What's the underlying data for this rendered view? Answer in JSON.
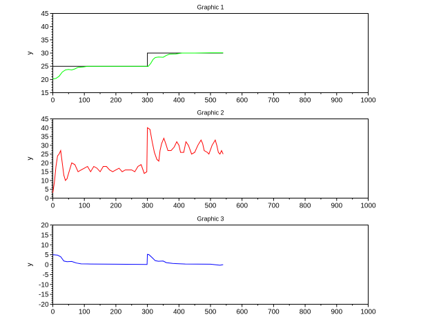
{
  "chart_data": [
    {
      "type": "line",
      "title": "Graphic 1",
      "xlabel": "",
      "ylabel": "y",
      "xlim": [
        0,
        1000
      ],
      "ylim": [
        15,
        45
      ],
      "xticks": [
        0,
        100,
        200,
        300,
        400,
        500,
        600,
        700,
        800,
        900,
        1000
      ],
      "yticks": [
        15,
        20,
        25,
        30,
        35,
        40,
        45
      ],
      "grid": false,
      "series": [
        {
          "color": "#000000",
          "x": [
            0,
            300,
            300,
            540
          ],
          "y": [
            25,
            25,
            30,
            30
          ]
        },
        {
          "color": "#00ff00",
          "x": [
            0,
            10,
            20,
            30,
            40,
            50,
            60,
            70,
            80,
            95,
            110,
            150,
            200,
            250,
            299,
            302,
            310,
            318,
            325,
            335,
            350,
            360,
            370,
            390,
            410,
            450,
            500,
            540
          ],
          "y": [
            20.2,
            20.4,
            21.2,
            22.8,
            23.6,
            23.8,
            23.6,
            24.0,
            24.6,
            24.7,
            25.0,
            25.0,
            25.0,
            25.0,
            25.0,
            24.9,
            26.0,
            27.6,
            28.3,
            28.5,
            28.4,
            29.1,
            29.6,
            29.7,
            30.0,
            30.0,
            30.1,
            30.1
          ]
        }
      ]
    },
    {
      "type": "line",
      "title": "Graphic 2",
      "xlabel": "",
      "ylabel": "y",
      "xlim": [
        0,
        1000
      ],
      "ylim": [
        0,
        45
      ],
      "xticks": [
        0,
        100,
        200,
        300,
        400,
        500,
        600,
        700,
        800,
        900,
        1000
      ],
      "yticks": [
        0,
        5,
        10,
        15,
        20,
        25,
        30,
        35,
        40,
        45
      ],
      "grid": false,
      "series": [
        {
          "color": "#ff0000",
          "x": [
            0,
            5,
            10,
            15,
            20,
            25,
            30,
            35,
            40,
            45,
            50,
            55,
            60,
            70,
            80,
            90,
            100,
            110,
            120,
            130,
            140,
            150,
            160,
            170,
            180,
            190,
            200,
            210,
            220,
            230,
            240,
            250,
            260,
            270,
            280,
            290,
            298,
            300,
            308,
            315,
            322,
            330,
            336,
            340,
            345,
            352,
            358,
            365,
            375,
            385,
            393,
            400,
            405,
            415,
            422,
            430,
            440,
            450,
            460,
            470,
            475,
            480,
            490,
            495,
            505,
            515,
            520,
            525,
            530,
            535,
            540
          ],
          "y": [
            3,
            9,
            18,
            24,
            25,
            27,
            20,
            13,
            10,
            11,
            14,
            17,
            20,
            19,
            15,
            16,
            17,
            18,
            15,
            18,
            17,
            15,
            18,
            18,
            16,
            15,
            16,
            17,
            15,
            16,
            16,
            16,
            15,
            18,
            19,
            14,
            15,
            40,
            39,
            32,
            26,
            22,
            21,
            27,
            31,
            34,
            31,
            27,
            27,
            29,
            32,
            30,
            26,
            26,
            32,
            30,
            25,
            26,
            30,
            33,
            31,
            27,
            26,
            25,
            30,
            33,
            30,
            26,
            25,
            27,
            25
          ]
        }
      ]
    },
    {
      "type": "line",
      "title": "Graphic 3",
      "xlabel": "",
      "ylabel": "y",
      "xlim": [
        0,
        1000
      ],
      "ylim": [
        -20,
        20
      ],
      "xticks": [
        0,
        100,
        200,
        300,
        400,
        500,
        600,
        700,
        800,
        900,
        1000
      ],
      "yticks": [
        -20,
        -15,
        -10,
        -5,
        0,
        5,
        10,
        15,
        20
      ],
      "grid": false,
      "series": [
        {
          "color": "#0000ff",
          "x": [
            0,
            15,
            25,
            35,
            45,
            60,
            75,
            90,
            120,
            200,
            299,
            300,
            305,
            315,
            325,
            335,
            350,
            360,
            380,
            420,
            500,
            530,
            540
          ],
          "y": [
            5,
            4.8,
            4,
            1.8,
            1.5,
            1.6,
            0.8,
            0.4,
            0.3,
            0.2,
            0.1,
            5.2,
            5,
            3.5,
            2,
            1.7,
            1.8,
            1,
            0.6,
            0.3,
            0.2,
            -0.3,
            0
          ]
        }
      ]
    }
  ]
}
